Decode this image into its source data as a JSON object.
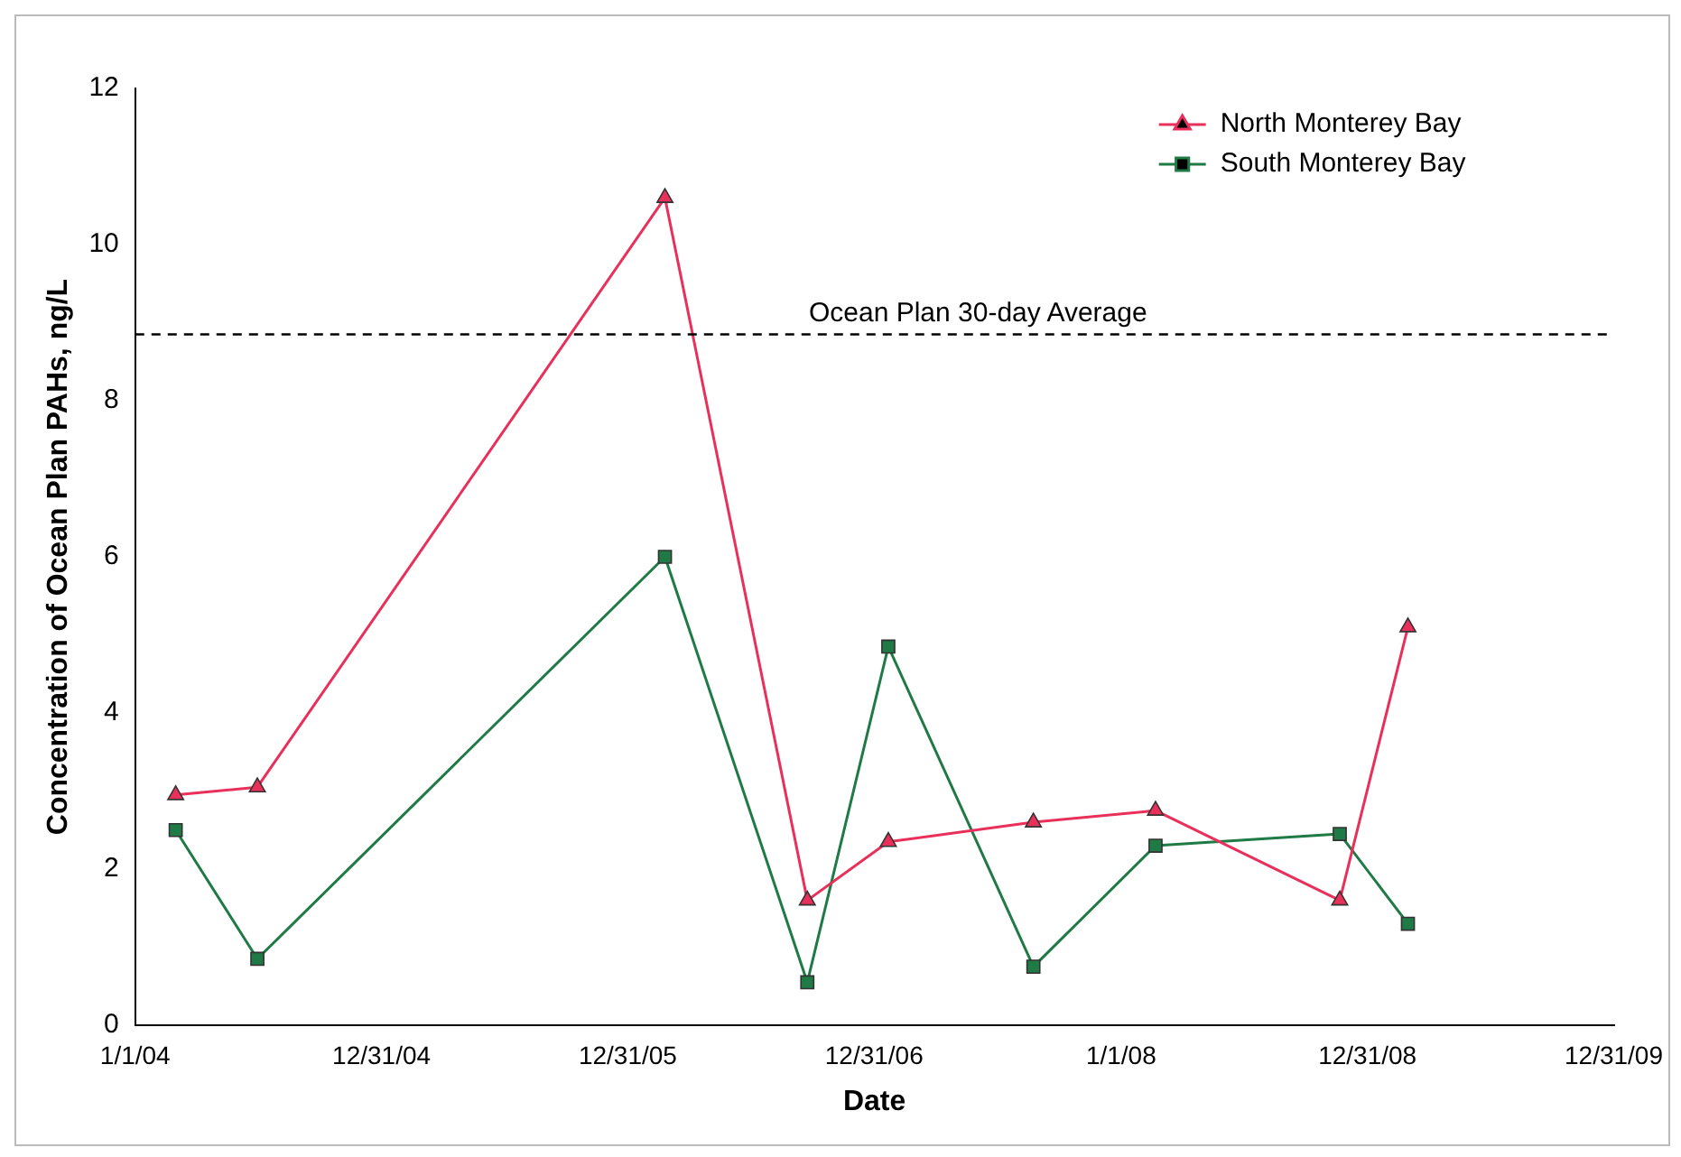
{
  "chart_data": {
    "type": "line",
    "xlabel": "Date",
    "ylabel": "Concentration of Ocean Plan PAHs, ng/L",
    "x": [
      "2004-03-01",
      "2004-06-30",
      "2006-02-24",
      "2006-09-23",
      "2007-01-21",
      "2007-08-24",
      "2008-02-21",
      "2008-11-20",
      "2009-03-01"
    ],
    "series": [
      {
        "name": "North Monterey Bay",
        "color": "#e8305a",
        "marker": "triangle",
        "values": [
          2.95,
          3.05,
          10.6,
          1.6,
          2.35,
          2.6,
          2.75,
          1.6,
          5.1
        ]
      },
      {
        "name": "South Monterey Bay",
        "color": "#1f7a45",
        "marker": "square",
        "values": [
          2.5,
          0.85,
          6.0,
          0.55,
          4.85,
          0.75,
          2.3,
          2.45,
          1.3
        ]
      }
    ],
    "xlim": [
      "2004-01-01",
      "2009-12-31"
    ],
    "xticks": [
      {
        "value": "2004-01-01",
        "label": "1/1/04"
      },
      {
        "value": "2004-12-31",
        "label": "12/31/04"
      },
      {
        "value": "2005-12-31",
        "label": "12/31/05"
      },
      {
        "value": "2006-12-31",
        "label": "12/31/06"
      },
      {
        "value": "2008-01-01",
        "label": "1/1/08"
      },
      {
        "value": "2008-12-31",
        "label": "12/31/08"
      },
      {
        "value": "2009-12-31",
        "label": "12/31/09"
      }
    ],
    "ylim": [
      0,
      12
    ],
    "yticks": [
      0,
      2,
      4,
      6,
      8,
      10,
      12
    ],
    "ref_lines": [
      {
        "axis": "y",
        "value": 8.85,
        "label": "Ocean Plan 30-day Average",
        "color": "#000000",
        "line_style": "dashed"
      }
    ],
    "grid": false,
    "legend": "top right",
    "line_style": "solid"
  }
}
